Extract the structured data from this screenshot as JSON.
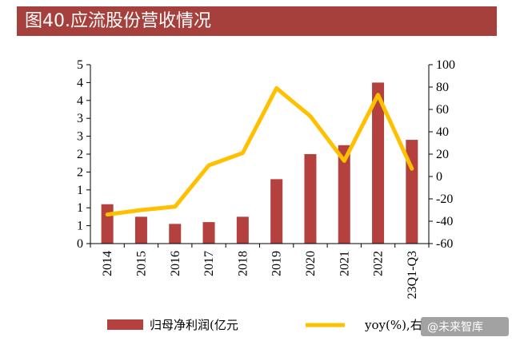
{
  "title": "图40.应流股份营收情况",
  "chart_data": {
    "type": "bar+line",
    "categories": [
      "2014",
      "2015",
      "2016",
      "2017",
      "2018",
      "2019",
      "2020",
      "2021",
      "2022",
      "23Q1-Q3"
    ],
    "series": [
      {
        "name": "归母净利润(亿元",
        "type": "bar",
        "axis": "left",
        "color": "#b5413e",
        "values": [
          1.1,
          0.75,
          0.55,
          0.6,
          0.75,
          1.8,
          2.5,
          2.75,
          4.5,
          2.9
        ]
      },
      {
        "name": "yoy(%),右",
        "type": "line",
        "axis": "right",
        "color": "#ffc000",
        "values": [
          -34,
          -30,
          -27,
          10,
          21,
          79,
          54,
          14,
          73,
          7
        ]
      }
    ],
    "y_left": {
      "ticks": [
        "0",
        "1",
        "1",
        "1",
        "2",
        "2",
        "3",
        "3",
        "4",
        "4",
        "5"
      ],
      "ylim": [
        0,
        5
      ]
    },
    "y_right": {
      "ticks": [
        "-60",
        "-40",
        "-20",
        "0",
        "20",
        "40",
        "60",
        "80",
        "100"
      ],
      "ylim": [
        -60,
        100
      ]
    }
  },
  "legend": {
    "bar_label": "归母净利润(亿元",
    "line_label": "yoy(%),右"
  },
  "watermark": {
    "text": "@未来智库"
  },
  "colors": {
    "title_bg": "#a6403d",
    "bar": "#b5413e",
    "line": "#ffc000"
  }
}
